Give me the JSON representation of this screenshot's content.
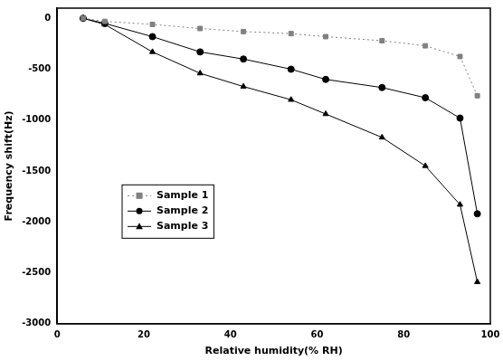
{
  "chart_data": {
    "type": "line",
    "x_label": "Relative humidity(% RH)",
    "y_label": "Frequency shift(Hz)",
    "xlim": [
      0,
      100
    ],
    "xticks": [
      0,
      20,
      40,
      60,
      80,
      100
    ],
    "ylim": [
      -3000,
      100
    ],
    "yticks": [
      -3000,
      -2500,
      -2000,
      -1500,
      -1000,
      -500,
      0
    ],
    "grid": false,
    "legend": "lower left",
    "series": [
      {
        "name": "Sample 1",
        "color": "#808080",
        "marker": "square",
        "line_style": "dotted",
        "x": [
          6,
          11,
          22,
          33,
          43,
          54,
          62,
          75,
          85,
          93,
          97
        ],
        "values": [
          0,
          -30,
          -60,
          -100,
          -130,
          -150,
          -180,
          -220,
          -270,
          -375,
          -760
        ]
      },
      {
        "name": "Sample 2",
        "color": "#000000",
        "marker": "circle",
        "line_style": "solid",
        "x": [
          6,
          11,
          22,
          33,
          43,
          54,
          62,
          75,
          85,
          93,
          97
        ],
        "values": [
          0,
          -50,
          -180,
          -330,
          -400,
          -500,
          -600,
          -680,
          -780,
          -980,
          -1920
        ]
      },
      {
        "name": "Sample 3",
        "color": "#000000",
        "marker": "triangle",
        "line_style": "solid",
        "x": [
          6,
          11,
          22,
          33,
          43,
          54,
          62,
          75,
          85,
          93,
          97
        ],
        "values": [
          0,
          -60,
          -330,
          -540,
          -670,
          -800,
          -940,
          -1170,
          -1450,
          -1830,
          -2590
        ]
      }
    ]
  }
}
